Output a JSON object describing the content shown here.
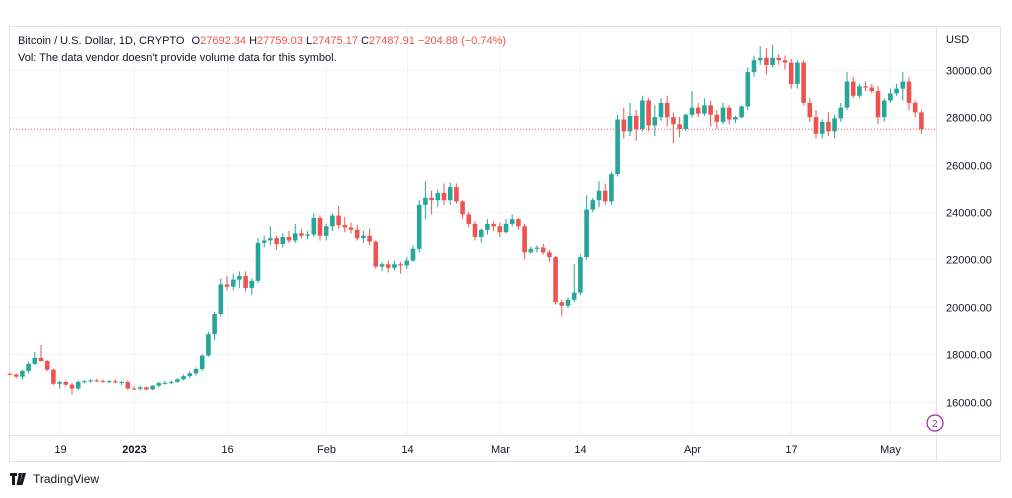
{
  "header": {
    "symbol": "Bitcoin / U.S. Dollar, 1D, CRYPTO",
    "o_label": "O",
    "o_value": "27692.34",
    "h_label": "H",
    "h_value": "27759.03",
    "l_label": "L",
    "l_value": "27475.17",
    "c_label": "C",
    "c_value": "27487.91",
    "change": "−204.88 (−0.74%)",
    "volume_note": "Vol: The data vendor doesn't provide volume data for this symbol."
  },
  "currency": "USD",
  "brand": "TradingView",
  "scroll_marker": "2",
  "colors": {
    "up": "#26a69a",
    "down": "#ef5350",
    "grid": "#f0f3fa",
    "text": "#131722"
  },
  "chart_data": {
    "type": "candlestick",
    "ylim": [
      14600,
      31800
    ],
    "yticks": [
      16000,
      18000,
      20000,
      22000,
      24000,
      26000,
      28000,
      30000
    ],
    "ytick_labels": [
      "16000.00",
      "18000.00",
      "20000.00",
      "22000.00",
      "24000.00",
      "26000.00",
      "28000.00",
      "30000.00"
    ],
    "xticks": [
      {
        "index": 8,
        "label": "19",
        "bold": false
      },
      {
        "index": 20,
        "label": "2023",
        "bold": true
      },
      {
        "index": 35,
        "label": "16",
        "bold": false
      },
      {
        "index": 51,
        "label": "Feb",
        "bold": false
      },
      {
        "index": 64,
        "label": "14",
        "bold": false
      },
      {
        "index": 79,
        "label": "Mar",
        "bold": false
      },
      {
        "index": 92,
        "label": "14",
        "bold": false
      },
      {
        "index": 110,
        "label": "Apr",
        "bold": false
      },
      {
        "index": 126,
        "label": "17",
        "bold": false
      },
      {
        "index": 142,
        "label": "May",
        "bold": false
      }
    ],
    "last_price": 27487.91,
    "candles": [
      [
        17180,
        17230,
        17120,
        17150
      ],
      [
        17150,
        17200,
        17000,
        17060
      ],
      [
        17060,
        17350,
        16950,
        17300
      ],
      [
        17300,
        17700,
        17200,
        17600
      ],
      [
        17600,
        18100,
        17550,
        17850
      ],
      [
        17850,
        18400,
        17700,
        17720
      ],
      [
        17720,
        17760,
        17300,
        17350
      ],
      [
        17350,
        17400,
        16700,
        16760
      ],
      [
        16760,
        16880,
        16550,
        16830
      ],
      [
        16830,
        16900,
        16650,
        16720
      ],
      [
        16720,
        16800,
        16300,
        16560
      ],
      [
        16560,
        16900,
        16500,
        16840
      ],
      [
        16840,
        16920,
        16780,
        16870
      ],
      [
        16870,
        16950,
        16800,
        16900
      ],
      [
        16900,
        16970,
        16830,
        16880
      ],
      [
        16880,
        16950,
        16800,
        16840
      ],
      [
        16840,
        16920,
        16780,
        16870
      ],
      [
        16870,
        16950,
        16780,
        16820
      ],
      [
        16820,
        16880,
        16700,
        16830
      ],
      [
        16830,
        16900,
        16500,
        16560
      ],
      [
        16560,
        16650,
        16500,
        16550
      ],
      [
        16550,
        16680,
        16490,
        16610
      ],
      [
        16610,
        16640,
        16480,
        16520
      ],
      [
        16520,
        16700,
        16490,
        16680
      ],
      [
        16680,
        16850,
        16600,
        16790
      ],
      [
        16790,
        16880,
        16720,
        16800
      ],
      [
        16800,
        16900,
        16740,
        16840
      ],
      [
        16840,
        17000,
        16800,
        16950
      ],
      [
        16950,
        17150,
        16900,
        17080
      ],
      [
        17080,
        17300,
        17000,
        17200
      ],
      [
        17200,
        17450,
        17100,
        17380
      ],
      [
        17380,
        18000,
        17300,
        17950
      ],
      [
        17950,
        18950,
        17900,
        18850
      ],
      [
        18850,
        19800,
        18600,
        19700
      ],
      [
        19700,
        21200,
        19600,
        20950
      ],
      [
        20950,
        21300,
        20700,
        20850
      ],
      [
        20850,
        21400,
        20700,
        21150
      ],
      [
        21150,
        21500,
        20800,
        21300
      ],
      [
        21300,
        21500,
        20650,
        20800
      ],
      [
        20800,
        21200,
        20500,
        21100
      ],
      [
        21100,
        22900,
        21000,
        22700
      ],
      [
        22700,
        23000,
        22500,
        22800
      ],
      [
        22800,
        23400,
        22600,
        22900
      ],
      [
        22900,
        23000,
        22400,
        22650
      ],
      [
        22650,
        23100,
        22500,
        22950
      ],
      [
        22950,
        23200,
        22700,
        22800
      ],
      [
        22800,
        23500,
        22700,
        23100
      ],
      [
        23100,
        23300,
        22900,
        23000
      ],
      [
        23000,
        23200,
        22850,
        23050
      ],
      [
        23050,
        23950,
        22950,
        23750
      ],
      [
        23750,
        23850,
        22800,
        23000
      ],
      [
        23000,
        23500,
        22800,
        23400
      ],
      [
        23400,
        23950,
        23200,
        23850
      ],
      [
        23850,
        24250,
        23300,
        23450
      ],
      [
        23450,
        23800,
        23150,
        23350
      ],
      [
        23350,
        23550,
        23100,
        23250
      ],
      [
        23250,
        23450,
        22800,
        22900
      ],
      [
        22900,
        23200,
        22700,
        23000
      ],
      [
        23000,
        23300,
        22600,
        22750
      ],
      [
        22750,
        22800,
        21600,
        21700
      ],
      [
        21700,
        21900,
        21500,
        21800
      ],
      [
        21800,
        21950,
        21450,
        21650
      ],
      [
        21650,
        21950,
        21550,
        21800
      ],
      [
        21800,
        21900,
        21400,
        21750
      ],
      [
        21750,
        22100,
        21600,
        21950
      ],
      [
        21950,
        22600,
        21900,
        22450
      ],
      [
        22450,
        24500,
        22300,
        24300
      ],
      [
        24300,
        25300,
        23700,
        24600
      ],
      [
        24600,
        24900,
        23900,
        24500
      ],
      [
        24500,
        24950,
        24200,
        24800
      ],
      [
        24800,
        25200,
        24300,
        24500
      ],
      [
        24500,
        25250,
        24300,
        25050
      ],
      [
        25050,
        25200,
        24350,
        24450
      ],
      [
        24450,
        24500,
        23700,
        23900
      ],
      [
        23900,
        24000,
        23350,
        23500
      ],
      [
        23500,
        23600,
        22800,
        22950
      ],
      [
        22950,
        23300,
        22700,
        23250
      ],
      [
        23250,
        23700,
        23050,
        23500
      ],
      [
        23500,
        23600,
        23200,
        23400
      ],
      [
        23400,
        23550,
        22950,
        23150
      ],
      [
        23150,
        23700,
        23100,
        23500
      ],
      [
        23500,
        23900,
        23400,
        23700
      ],
      [
        23700,
        23750,
        23250,
        23400
      ],
      [
        23400,
        23500,
        22000,
        22300
      ],
      [
        22300,
        22550,
        22250,
        22450
      ],
      [
        22450,
        22600,
        22300,
        22500
      ],
      [
        22500,
        22650,
        22200,
        22300
      ],
      [
        22300,
        22400,
        21900,
        22100
      ],
      [
        22100,
        22150,
        20100,
        20200
      ],
      [
        20200,
        20300,
        19600,
        20050
      ],
      [
        20050,
        20400,
        19950,
        20300
      ],
      [
        20300,
        21800,
        20200,
        20600
      ],
      [
        20600,
        22200,
        20500,
        22100
      ],
      [
        22100,
        24700,
        22000,
        24100
      ],
      [
        24100,
        24600,
        24000,
        24500
      ],
      [
        24500,
        25300,
        24200,
        24900
      ],
      [
        24900,
        25200,
        24300,
        24450
      ],
      [
        24450,
        25700,
        24300,
        25600
      ],
      [
        25600,
        28100,
        25500,
        27900
      ],
      [
        27900,
        28400,
        27100,
        27400
      ],
      [
        27400,
        28600,
        27200,
        28050
      ],
      [
        28050,
        28300,
        27000,
        27500
      ],
      [
        27500,
        28900,
        27400,
        28700
      ],
      [
        28700,
        28800,
        27400,
        27650
      ],
      [
        27650,
        28500,
        27200,
        28000
      ],
      [
        28000,
        28800,
        27850,
        28600
      ],
      [
        28600,
        28900,
        27600,
        28000
      ],
      [
        28000,
        28200,
        26900,
        27700
      ],
      [
        27700,
        28000,
        27150,
        27500
      ],
      [
        27500,
        28150,
        27400,
        28100
      ],
      [
        28100,
        29100,
        28000,
        28400
      ],
      [
        28400,
        28600,
        28000,
        28150
      ],
      [
        28150,
        28800,
        28050,
        28500
      ],
      [
        28500,
        28700,
        27600,
        28100
      ],
      [
        28100,
        28300,
        27500,
        27800
      ],
      [
        27800,
        28600,
        27700,
        28400
      ],
      [
        28400,
        28500,
        27700,
        27900
      ],
      [
        27900,
        28050,
        27750,
        28000
      ],
      [
        28000,
        28500,
        27950,
        28450
      ],
      [
        28450,
        30100,
        28300,
        29900
      ],
      [
        29900,
        30600,
        29700,
        30400
      ],
      [
        30400,
        31000,
        30200,
        30500
      ],
      [
        30500,
        30900,
        29800,
        30200
      ],
      [
        30200,
        31050,
        30100,
        30500
      ],
      [
        30500,
        30650,
        30200,
        30400
      ],
      [
        30400,
        30600,
        30000,
        30300
      ],
      [
        30300,
        30450,
        29200,
        29400
      ],
      [
        29400,
        30400,
        29200,
        30300
      ],
      [
        30300,
        30400,
        28500,
        28600
      ],
      [
        28600,
        28800,
        27800,
        28000
      ],
      [
        28000,
        28300,
        27100,
        27300
      ],
      [
        27300,
        27900,
        27100,
        27800
      ],
      [
        27800,
        28200,
        27200,
        27400
      ],
      [
        27400,
        28100,
        27100,
        27950
      ],
      [
        27950,
        28600,
        27800,
        28400
      ],
      [
        28400,
        29900,
        28300,
        29500
      ],
      [
        29500,
        29700,
        28800,
        28900
      ],
      [
        28900,
        29400,
        28800,
        29300
      ],
      [
        29300,
        29500,
        29100,
        29250
      ],
      [
        29250,
        29400,
        29000,
        29100
      ],
      [
        29100,
        29300,
        27700,
        28000
      ],
      [
        28000,
        28800,
        27800,
        28700
      ],
      [
        28700,
        29200,
        28600,
        29000
      ],
      [
        29000,
        29400,
        28900,
        29200
      ],
      [
        29200,
        29900,
        28700,
        29500
      ],
      [
        29500,
        29700,
        28300,
        28600
      ],
      [
        28600,
        28700,
        28000,
        28200
      ],
      [
        28200,
        28300,
        27300,
        27500
      ]
    ]
  }
}
